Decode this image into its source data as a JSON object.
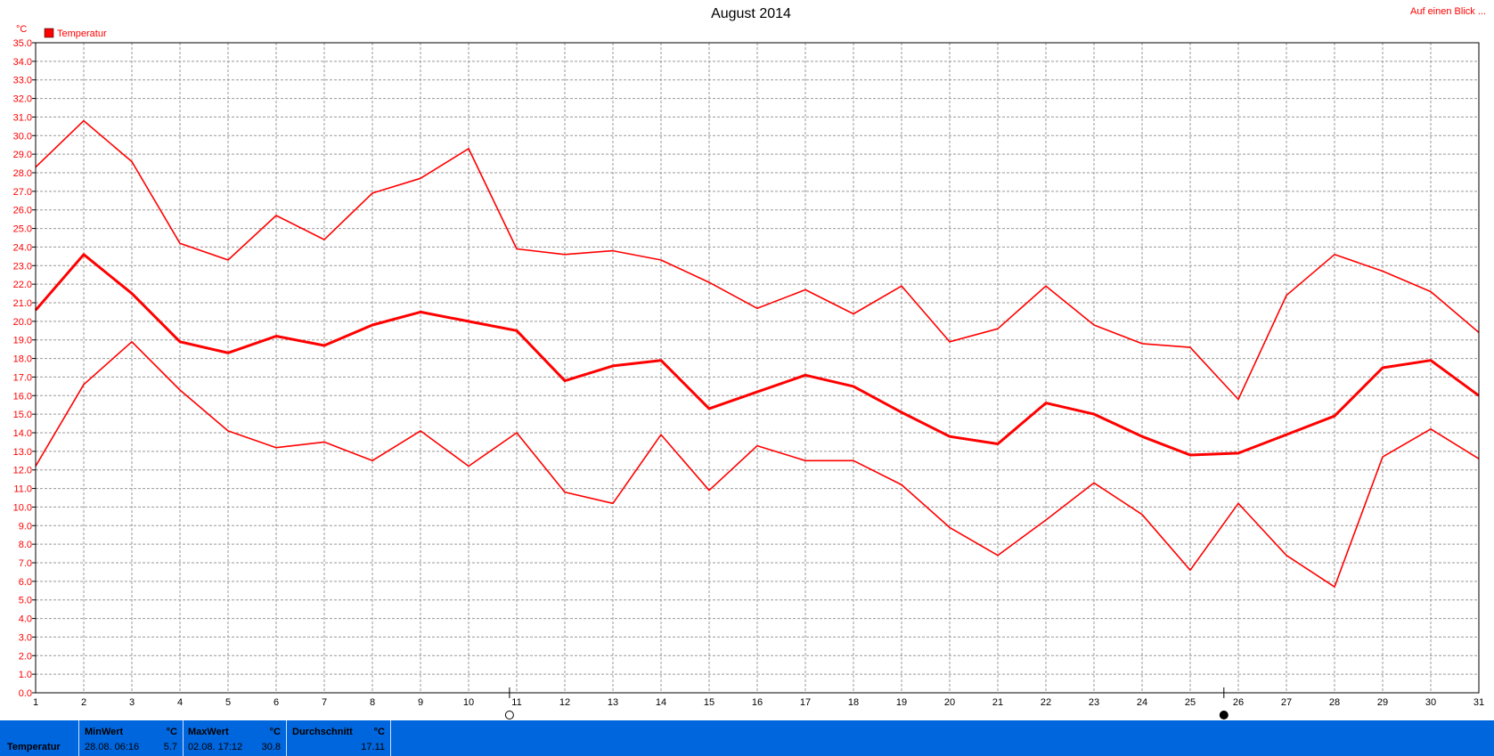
{
  "header": {
    "title": "August 2014",
    "unit": "°C",
    "overview_link": "Auf einen Blick ..."
  },
  "legend": {
    "label": "Temperatur",
    "color": "#ff0000"
  },
  "chart_data": {
    "type": "line",
    "title": "August 2014",
    "ylabel": "°C",
    "ylim": [
      0,
      35
    ],
    "grid": true,
    "legend_position": "top-left",
    "x": [
      1,
      2,
      3,
      4,
      5,
      6,
      7,
      8,
      9,
      10,
      11,
      12,
      13,
      14,
      15,
      16,
      17,
      18,
      19,
      20,
      21,
      22,
      23,
      24,
      25,
      26,
      27,
      28,
      29,
      30,
      31
    ],
    "y_ticks": [
      "0.0",
      "1.0",
      "2.0",
      "3.0",
      "4.0",
      "5.0",
      "6.0",
      "7.0",
      "8.0",
      "9.0",
      "10.0",
      "11.0",
      "12.0",
      "13.0",
      "14.0",
      "15.0",
      "16.0",
      "17.0",
      "18.0",
      "19.0",
      "20.0",
      "21.0",
      "22.0",
      "23.0",
      "24.0",
      "25.0",
      "26.0",
      "27.0",
      "28.0",
      "29.0",
      "30.0",
      "31.0",
      "32.0",
      "33.0",
      "34.0",
      "35.0"
    ],
    "series": [
      {
        "name": "Temperatur",
        "color": "#ff0000",
        "role": "max",
        "values": [
          28.3,
          30.8,
          28.6,
          24.2,
          23.3,
          25.7,
          24.4,
          26.9,
          27.7,
          29.3,
          23.9,
          23.6,
          23.8,
          23.3,
          22.1,
          20.7,
          21.7,
          20.4,
          21.9,
          18.9,
          19.6,
          21.9,
          19.8,
          18.8,
          18.6,
          15.8,
          21.4,
          23.6,
          22.7,
          21.6,
          19.4
        ]
      },
      {
        "name": "Temperatur",
        "color": "#ff0000",
        "role": "avg",
        "values": [
          20.6,
          23.6,
          21.5,
          18.9,
          18.3,
          19.2,
          18.7,
          19.8,
          20.5,
          20.0,
          19.5,
          16.8,
          17.6,
          17.9,
          15.3,
          16.2,
          17.1,
          16.5,
          15.1,
          13.8,
          13.4,
          15.6,
          15.0,
          13.8,
          12.8,
          12.9,
          13.9,
          14.9,
          17.5,
          17.9,
          16.0
        ]
      },
      {
        "name": "Temperatur",
        "color": "#ff0000",
        "role": "min",
        "values": [
          12.2,
          16.6,
          18.9,
          16.3,
          14.1,
          13.2,
          13.5,
          12.5,
          14.1,
          12.2,
          14.0,
          10.8,
          10.2,
          13.9,
          10.9,
          13.3,
          12.5,
          12.5,
          11.2,
          8.9,
          7.4,
          9.3,
          11.3,
          9.6,
          6.6,
          10.2,
          7.4,
          5.7,
          12.7,
          14.2,
          12.6
        ]
      }
    ],
    "moon_phases": [
      {
        "day": 10.85,
        "symbol": "○"
      },
      {
        "day": 25.7,
        "symbol": "●"
      }
    ]
  },
  "stats": {
    "series_label": "Temperatur",
    "min": {
      "header": "MinWert",
      "unit": "°C",
      "when": "28.08.  06:16",
      "value": "5.7"
    },
    "max": {
      "header": "MaxWert",
      "unit": "°C",
      "when": "02.08.  17:12",
      "value": "30.8"
    },
    "avg": {
      "header": "Durchschnitt",
      "unit": "°C",
      "value": "17.11"
    }
  }
}
